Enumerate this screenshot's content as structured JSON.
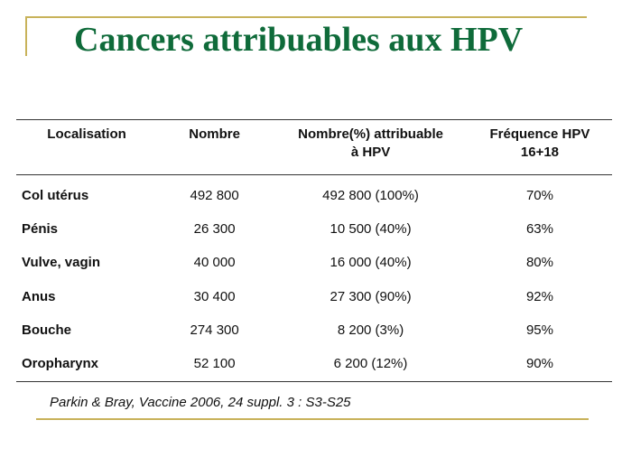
{
  "title": "Cancers attribuables aux HPV",
  "table": {
    "headers": [
      "Localisation",
      "Nombre",
      "Nombre(%)  attribuable\nà HPV",
      "Fréquence HPV\n16+18"
    ],
    "rows": [
      [
        "Col utérus",
        "492 800",
        "492 800 (100%)",
        "70%"
      ],
      [
        "Pénis",
        "26 300",
        "10 500 (40%)",
        "63%"
      ],
      [
        "Vulve, vagin",
        "40 000",
        "16 000 (40%)",
        "80%"
      ],
      [
        "Anus",
        "30 400",
        "27 300 (90%)",
        "92%"
      ],
      [
        "Bouche",
        "274 300",
        "8 200 (3%)",
        "95%"
      ],
      [
        "Oropharynx",
        "52 100",
        "6 200 (12%)",
        "90%"
      ]
    ]
  },
  "source": "Parkin & Bray, Vaccine 2006, 24 suppl. 3 : S3-S25",
  "colors": {
    "title": "#0f6b3a",
    "accent_rule": "#c8b25a"
  }
}
